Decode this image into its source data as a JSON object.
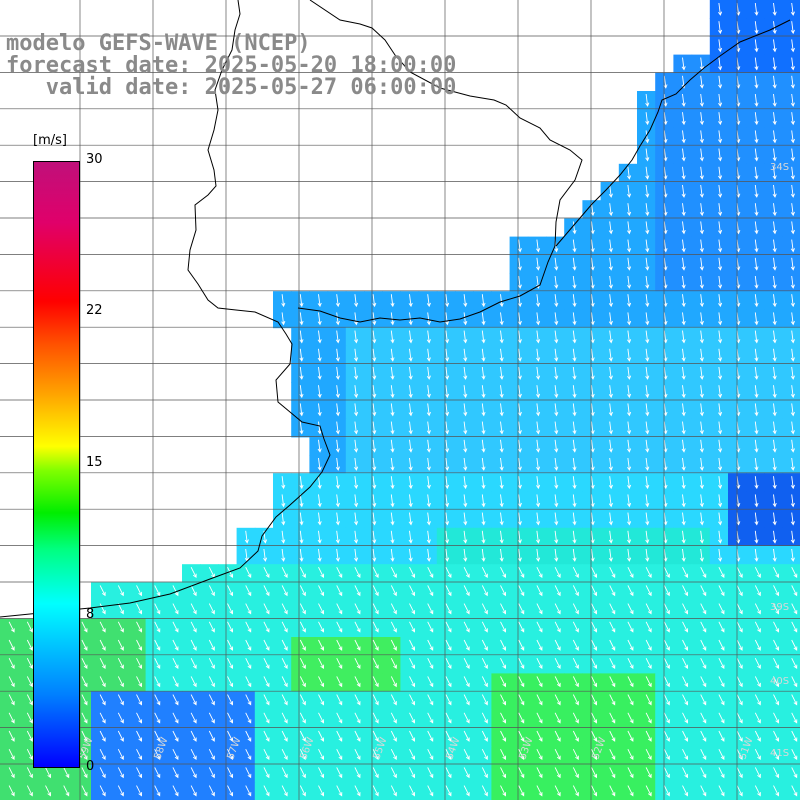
{
  "title": {
    "line1": "modelo GEFS-WAVE (NCEP)",
    "line2": "forecast date: 2025-05-20 18:00:00",
    "line3": "   valid date: 2025-05-27 06:00:00"
  },
  "colorbar": {
    "unit": "[m/s]",
    "ticks": [
      "30",
      "22",
      "15",
      "8",
      "0"
    ],
    "tick_values": [
      30,
      22,
      15,
      8,
      0
    ],
    "range": [
      0,
      30
    ],
    "palette": [
      "#0000ff",
      "#0080ff",
      "#00ffff",
      "#00ff80",
      "#00ee00",
      "#ffff00",
      "#ff5000",
      "#ff0000",
      "#c0107a"
    ]
  },
  "map": {
    "land_color": "#ffffff",
    "grid_color": "#000000",
    "arrow_color": "#ffffff",
    "lon_labels": [
      "59W",
      "58W",
      "57W",
      "56W",
      "55W",
      "54W",
      "53W",
      "52W",
      "51W"
    ],
    "lat_labels": [
      "34S",
      "39S",
      "40S",
      "41S"
    ]
  }
}
